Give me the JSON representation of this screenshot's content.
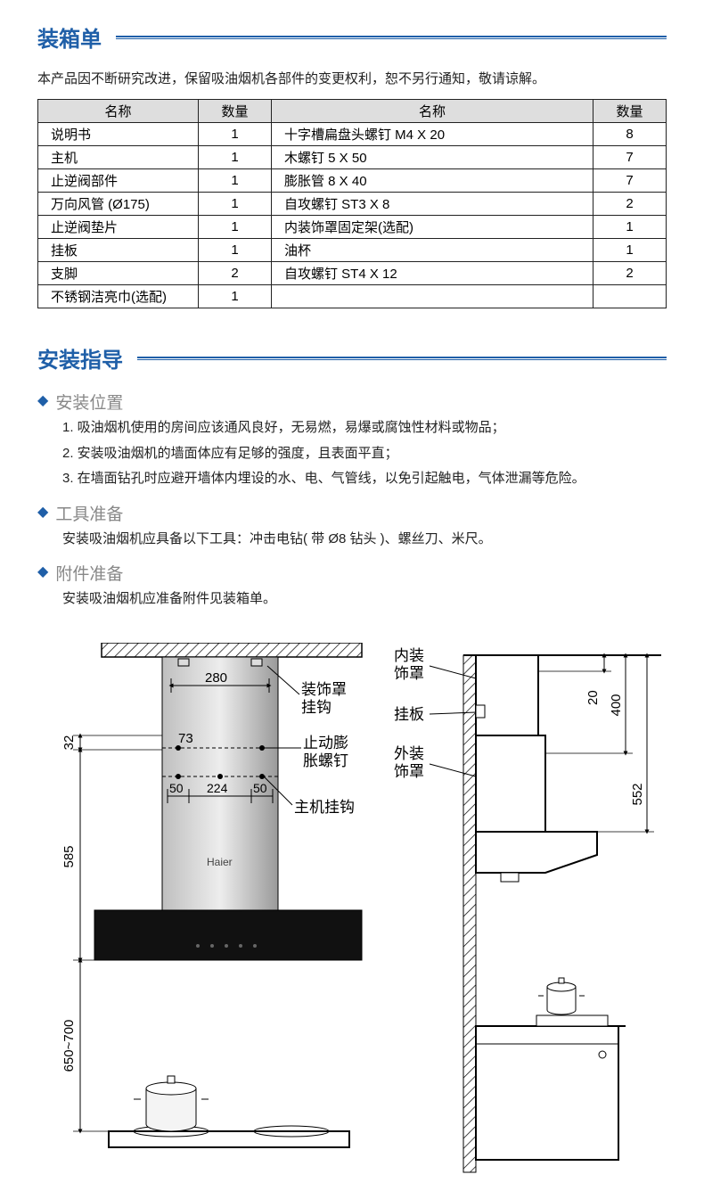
{
  "packing": {
    "title": "装箱单",
    "intro": "本产品因不断研究改进，保留吸油烟机各部件的变更权利，恕不另行通知，敬请谅解。",
    "headers": {
      "name": "名称",
      "qty": "数量"
    },
    "left_rows": [
      {
        "name": "说明书",
        "qty": "1"
      },
      {
        "name": "主机",
        "qty": "1"
      },
      {
        "name": "止逆阀部件",
        "qty": "1"
      },
      {
        "name": "万向风管 (Ø175)",
        "qty": "1"
      },
      {
        "name": "止逆阀垫片",
        "qty": "1"
      },
      {
        "name": "挂板",
        "qty": "1"
      },
      {
        "name": "支脚",
        "qty": "2"
      },
      {
        "name": "不锈钢洁亮巾(选配)",
        "qty": "1"
      }
    ],
    "right_rows": [
      {
        "name": "十字槽扁盘头螺钉 M4 X 20",
        "qty": "8"
      },
      {
        "name": "木螺钉 5 X 50",
        "qty": "7"
      },
      {
        "name": "膨胀管 8 X 40",
        "qty": "7"
      },
      {
        "name": "自攻螺钉 ST3 X 8",
        "qty": "2"
      },
      {
        "name": "内装饰罩固定架(选配)",
        "qty": "1"
      },
      {
        "name": "油杯",
        "qty": "1"
      },
      {
        "name": "自攻螺钉 ST4 X 12",
        "qty": "2"
      },
      {
        "name": "",
        "qty": ""
      }
    ]
  },
  "install": {
    "title": "安装指导",
    "pos": {
      "title": "安装位置",
      "l1": "1. 吸油烟机使用的房间应该通风良好，无易燃，易爆或腐蚀性材料或物品；",
      "l2": "2. 安装吸油烟机的墙面体应有足够的强度，且表面平直；",
      "l3": "3. 在墙面钻孔时应避开墙体内埋设的水、电、气管线，以免引起触电，气体泄漏等危险。"
    },
    "tool": {
      "title": "工具准备",
      "body": "安装吸油烟机应具备以下工具：冲击电钻( 带 Ø8 钻头 )、螺丝刀、米尺。"
    },
    "acc": {
      "title": "附件准备",
      "body": "安装吸油烟机应准备附件见装箱单。"
    }
  },
  "diagram_left": {
    "d280": "280",
    "d73": "73",
    "d32": "32",
    "d50a": "50",
    "d224": "224",
    "d50b": "50",
    "d585": "585",
    "d650": "650~700",
    "lb1a": "装饰罩",
    "lb1b": "挂钩",
    "lb2a": "止动膨",
    "lb2b": "胀螺钉",
    "lb3": "主机挂钩",
    "brand": "Haier"
  },
  "diagram_right": {
    "lb_inner_a": "内装",
    "lb_inner_b": "饰罩",
    "lb_plate": "挂板",
    "lb_outer_a": "外装",
    "lb_outer_b": "饰罩",
    "d20": "20",
    "d400": "400",
    "d552": "552"
  },
  "colors": {
    "accent": "#1f5fa8",
    "grey_title": "#888888",
    "table_header_bg": "#dedede",
    "steel_light": "#e6e6e6",
    "steel_dark": "#9a9a9a",
    "black_panel": "#111111"
  }
}
